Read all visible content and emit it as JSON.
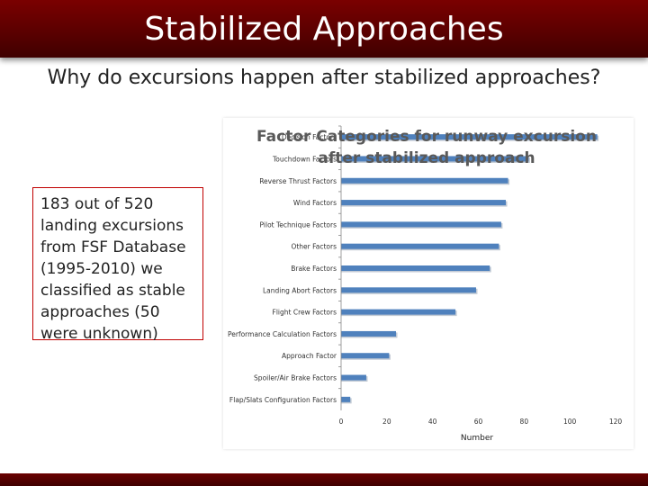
{
  "slide": {
    "title": "Stabilized Approaches",
    "subtitle": "Why do excursions happen after stabilized approaches?",
    "callout": "183 out of 520 landing excursions from FSF Database (1995-2010) we classified as stable approaches (50 were unknown)"
  },
  "colors": {
    "title_bar": "#6b0000",
    "bar": "#4f81bd",
    "callout_border": "#c00000"
  },
  "chart_data": {
    "type": "bar",
    "orientation": "horizontal",
    "title_line1": "Factor Categories for runway excursion",
    "title_line2": "after stabilized approach",
    "xlabel": "Number",
    "ylabel": "",
    "xlim": [
      0,
      120
    ],
    "xticks": [
      0,
      20,
      40,
      60,
      80,
      100,
      120
    ],
    "grid": false,
    "categories": [
      "Decision Factors",
      "Touchdown Factors",
      "Reverse Thrust Factors",
      "Wind Factors",
      "Pilot Technique Factors",
      "Other Factors",
      "Brake Factors",
      "Landing Abort Factors",
      "Flight Crew Factors",
      "Performance Calculation Factors",
      "Approach Factor",
      "Spoiler/Air Brake Factors",
      "Flap/Slats Configuration Factors"
    ],
    "values": [
      112,
      82,
      73,
      72,
      70,
      69,
      65,
      59,
      50,
      24,
      21,
      11,
      4
    ]
  }
}
